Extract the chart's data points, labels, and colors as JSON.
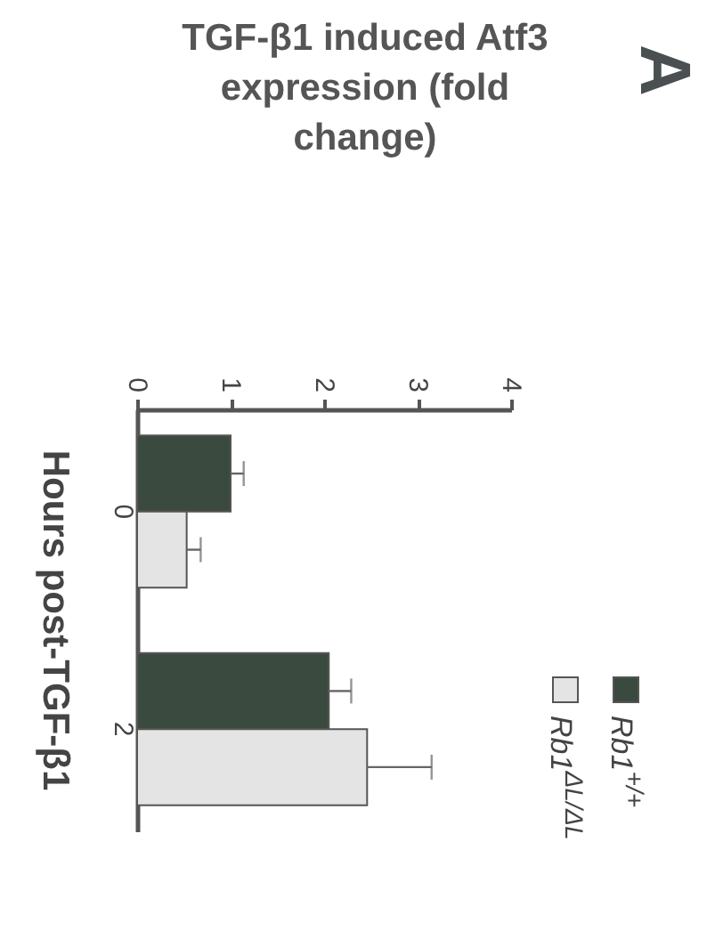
{
  "chart_data": {
    "type": "bar",
    "orientation": "horizontal",
    "ylabel": "Hours post-TGF-β1",
    "annotations": [
      "TGF-β1 induced Atf3 expression (fold change)",
      "A"
    ],
    "categories": [
      "0",
      "2"
    ],
    "series": [
      {
        "name": "Rb1$^{+/+}$",
        "color": "#3b4a3f",
        "values": [
          1.0,
          2.05
        ],
        "errors": [
          [
            1.0,
            1.14
          ],
          [
            2.05,
            2.29
          ]
        ]
      },
      {
        "name": "Rb1$^{ΔL/ΔL}$",
        "color": "#e4e4e4",
        "values": [
          0.53,
          2.46
        ],
        "errors": [
          [
            0.53,
            0.68
          ],
          [
            2.46,
            3.15
          ]
        ]
      }
    ],
    "xlim": [
      0,
      4
    ],
    "xticks": [
      0,
      1,
      2,
      3,
      4
    ],
    "legend": "bottom right",
    "grid": false
  }
}
